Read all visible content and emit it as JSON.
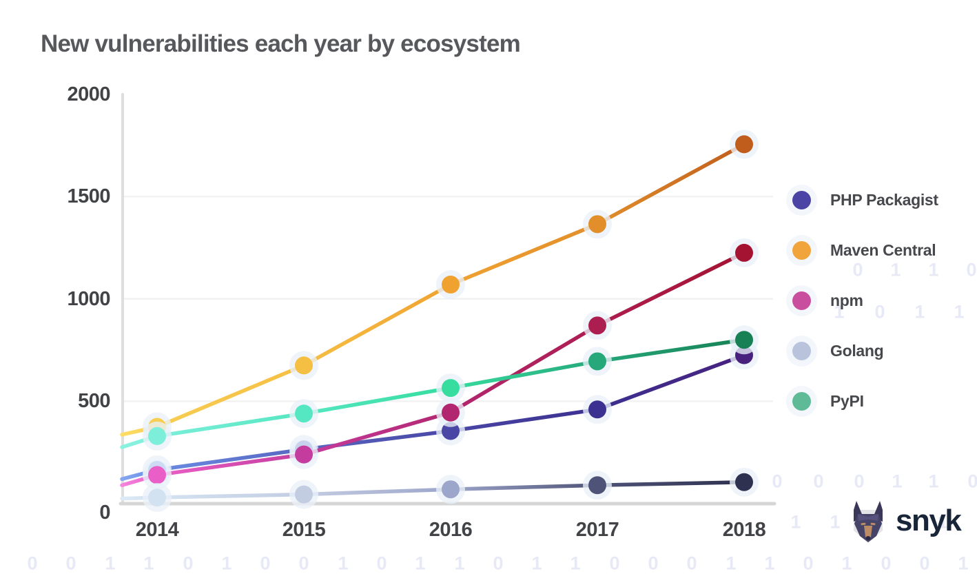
{
  "chart_data": {
    "type": "line",
    "title": "New vulnerabilities each year by ecosystem",
    "x_labels": [
      "2014",
      "2015",
      "2016",
      "2017",
      "2018"
    ],
    "y_ticks": [
      0,
      500,
      1000,
      1500,
      2000
    ],
    "ylim": [
      0,
      2000
    ],
    "grid": "horizontal",
    "legend_position": "right",
    "series": [
      {
        "name": "PHP Packagist",
        "legend_color": "#4C44A5",
        "values": [
          165,
          265,
          355,
          460,
          725
        ],
        "left_edge_value": 120,
        "edge_color": "#84A7F2",
        "point_colors": [
          "#6B8BE2",
          "#5767C0",
          "#4A46A5",
          "#3C3090",
          "#48217E"
        ]
      },
      {
        "name": "Maven Central",
        "legend_color": "#F0A43B",
        "values": [
          375,
          675,
          1070,
          1365,
          1755
        ],
        "left_edge_value": 337,
        "edge_color": "#FFDE66",
        "point_colors": [
          "#F7CD52",
          "#F5BF44",
          "#F0A231",
          "#E18E2B",
          "#C05D1D"
        ]
      },
      {
        "name": "npm",
        "legend_color": "#C94F9E",
        "values": [
          140,
          240,
          445,
          870,
          1225
        ],
        "left_edge_value": 90,
        "edge_color": "#F584DC",
        "point_colors": [
          "#E95FC7",
          "#C43D9E",
          "#B2266F",
          "#AC1E50",
          "#A41331"
        ]
      },
      {
        "name": "Golang",
        "legend_color": "#B9C4DC",
        "values": [
          30,
          45,
          70,
          90,
          105
        ],
        "left_edge_value": 25,
        "edge_color": "#DCE9F6",
        "point_colors": [
          "#D3E2F1",
          "#C3CDE2",
          "#9CA5CA",
          "#4F5377",
          "#2F3150"
        ]
      },
      {
        "name": "PyPI",
        "legend_color": "#5FBA97",
        "values": [
          330,
          440,
          565,
          695,
          800
        ],
        "left_edge_value": 276,
        "edge_color": "#8AF3E0",
        "point_colors": [
          "#7CEEDA",
          "#55E7C1",
          "#37DC9F",
          "#26A87B",
          "#178155"
        ]
      }
    ]
  },
  "footer": {
    "brand": "snyk"
  },
  "background_binary": {
    "color": "#E7E9F6",
    "rows": [
      {
        "y": 392,
        "digits": [
          [
            1245,
            "0"
          ],
          [
            1300,
            "1"
          ],
          [
            1355,
            "1"
          ],
          [
            1410,
            "0"
          ]
        ]
      },
      {
        "y": 453,
        "digits": [
          [
            1218,
            "1"
          ],
          [
            1277,
            "0"
          ],
          [
            1335,
            "1"
          ],
          [
            1392,
            "1"
          ]
        ]
      },
      {
        "y": 699,
        "digits": [
          [
            1128,
            "0"
          ],
          [
            1188,
            "0"
          ],
          [
            1247,
            "0"
          ],
          [
            1302,
            "1"
          ],
          [
            1355,
            "1"
          ],
          [
            1412,
            "0"
          ]
        ]
      },
      {
        "y": 758,
        "digits": [
          [
            1155,
            "1"
          ],
          [
            1212,
            "1"
          ],
          [
            1368,
            "1"
          ]
        ]
      },
      {
        "y": 818,
        "digits": [
          [
            47,
            "0"
          ],
          [
            103,
            "0"
          ],
          [
            160,
            "1"
          ],
          [
            216,
            "1"
          ],
          [
            273,
            "0"
          ],
          [
            329,
            "1"
          ],
          [
            385,
            "0"
          ],
          [
            441,
            "0"
          ],
          [
            498,
            "1"
          ],
          [
            554,
            "0"
          ],
          [
            610,
            "1"
          ],
          [
            667,
            "1"
          ],
          [
            723,
            "0"
          ],
          [
            779,
            "1"
          ],
          [
            835,
            "1"
          ],
          [
            892,
            "0"
          ],
          [
            948,
            "0"
          ],
          [
            1004,
            "0"
          ],
          [
            1061,
            "1"
          ],
          [
            1117,
            "1"
          ],
          [
            1173,
            "0"
          ],
          [
            1229,
            "1"
          ],
          [
            1286,
            "0"
          ],
          [
            1342,
            "0"
          ],
          [
            1398,
            "1"
          ]
        ]
      }
    ]
  },
  "style": {
    "axis_line_color": "#DEDEDF",
    "baseline_color": "#D6D6D6",
    "gridline_color": "#F2F2F3",
    "halo_color": "#E9F1F9",
    "title_color": "#56585C",
    "tick_label_color": "#414347",
    "legend_text_color": "#47484C",
    "brand_text_color": "#192538"
  }
}
